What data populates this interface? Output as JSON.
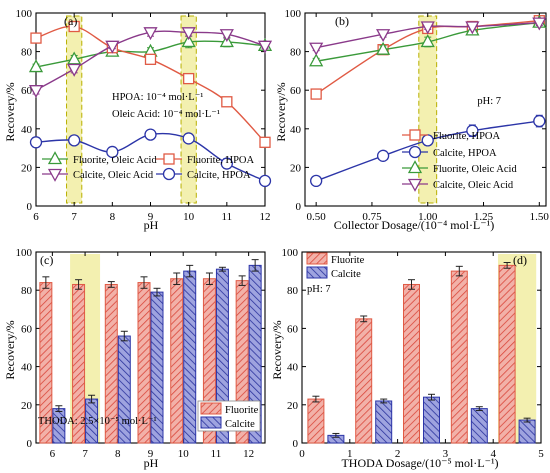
{
  "colors": {
    "fluorite": "#e05a44",
    "calcite": "#2c35a8",
    "fluorite_oleic": "#3a9a3a",
    "calcite_oleic": "#8a3a8a",
    "fluorite_bar": "#f2aaa2",
    "calcite_bar": "#8e93d6",
    "highlight": "#f3f0b0",
    "highlight_edge": "#b8b000"
  },
  "chart_data": [
    {
      "id": "a",
      "type": "line",
      "panel_label": "(a)",
      "xlabel": "pH",
      "ylabel": "Recovery/%",
      "xlim": [
        6,
        12
      ],
      "ylim": [
        0,
        100
      ],
      "xticks": [
        6,
        7,
        8,
        9,
        10,
        11,
        12
      ],
      "yticks": [
        0,
        20,
        40,
        60,
        80,
        100
      ],
      "highlight": [
        [
          6.8,
          7.2
        ],
        [
          9.8,
          10.2
        ]
      ],
      "annotations": [
        "HPOA: 10⁻⁴ mol·L⁻¹",
        "Oleic Acid: 10⁻⁴ mol·L⁻¹"
      ],
      "legend_location": "lower",
      "x": [
        6,
        7,
        8,
        9,
        10,
        11,
        12
      ],
      "series": [
        {
          "name": "Fluorite, Oleic Acid",
          "marker": "triangle-up",
          "color": "#3a9a3a",
          "values": [
            72,
            76,
            80,
            80,
            85,
            85,
            83
          ],
          "errors": [
            1.5,
            2,
            1.5,
            2,
            3,
            2.5,
            1.5
          ]
        },
        {
          "name": "Fluorite, HPOA",
          "marker": "square",
          "color": "#e05a44",
          "values": [
            87,
            93,
            82,
            76,
            66,
            54,
            33
          ],
          "errors": [
            1,
            1.5,
            1.5,
            1.5,
            1.5,
            1.5,
            1.5
          ]
        },
        {
          "name": "Calcite, Oleic Acid",
          "marker": "triangle-down",
          "color": "#8a3a8a",
          "values": [
            60,
            71,
            83,
            90,
            90,
            89,
            83
          ],
          "errors": [
            2,
            2,
            1.5,
            2,
            2,
            2,
            1.5
          ]
        },
        {
          "name": "Calcite, HPOA",
          "marker": "circle",
          "color": "#2c35a8",
          "values": [
            33,
            34,
            28,
            37,
            35,
            22,
            13
          ],
          "errors": [
            2.5,
            2,
            2,
            2,
            2,
            2.5,
            2
          ]
        }
      ]
    },
    {
      "id": "b",
      "type": "line",
      "panel_label": "(b)",
      "xlabel": "Collector Dosage/(10⁻⁴ mol·L⁻¹)",
      "ylabel": "Recovery/%",
      "xlim": [
        0.45,
        1.53
      ],
      "ylim": [
        0,
        100
      ],
      "xticks": [
        0.5,
        0.75,
        1.0,
        1.25,
        1.5
      ],
      "xtick_labels": [
        "0.50",
        "0.75",
        "1.00",
        "1.25",
        "1.50"
      ],
      "yticks": [
        0,
        20,
        40,
        60,
        80,
        100
      ],
      "highlight": [
        [
          0.96,
          1.04
        ]
      ],
      "annotations": [
        "pH: 7"
      ],
      "legend_location": "lower-right",
      "x": [
        0.5,
        0.8,
        1.0,
        1.2,
        1.5
      ],
      "series": [
        {
          "name": "Fluorite, HPOA",
          "marker": "square",
          "color": "#e05a44",
          "values": [
            58,
            81,
            92,
            93,
            96
          ],
          "errors": [
            1.5,
            2,
            2,
            1.5,
            1.5
          ]
        },
        {
          "name": "Calcite, HPOA",
          "marker": "circle",
          "color": "#2c35a8",
          "values": [
            13,
            26,
            34,
            39,
            44
          ],
          "errors": [
            2,
            2,
            2.5,
            3,
            3
          ]
        },
        {
          "name": "Fluorite, Oleic Acid",
          "marker": "triangle-up",
          "color": "#3a9a3a",
          "values": [
            75,
            81,
            85,
            91,
            95
          ],
          "errors": [
            1.5,
            2,
            2.5,
            2,
            1.5
          ]
        },
        {
          "name": "Calcite, Oleic Acid",
          "marker": "triangle-down",
          "color": "#8a3a8a",
          "values": [
            82,
            89,
            93,
            93,
            95
          ],
          "errors": [
            1.5,
            1.5,
            1.5,
            1.5,
            1.5
          ]
        }
      ]
    },
    {
      "id": "c",
      "type": "bar",
      "panel_label": "(c)",
      "xlabel": "pH",
      "ylabel": "Recovery/%",
      "ylim": [
        0,
        100
      ],
      "yticks": [
        0,
        20,
        40,
        60,
        80,
        100
      ],
      "categories": [
        "6",
        "7",
        "8",
        "9",
        "10",
        "11",
        "12"
      ],
      "highlight_categories": [
        "7"
      ],
      "annotations": [
        "THODA: 2.5×10⁻⁵ mol·L⁻¹"
      ],
      "legend_location": "lower-right",
      "series": [
        {
          "name": "Fluorite",
          "color": "#e05a44",
          "values": [
            84,
            83,
            83,
            84,
            86,
            86,
            85
          ],
          "errors": [
            3,
            2.5,
            1.5,
            3,
            3,
            3,
            2.5
          ]
        },
        {
          "name": "Calcite",
          "color": "#2c35a8",
          "values": [
            18,
            23,
            56,
            79,
            90,
            91,
            93
          ],
          "errors": [
            1.5,
            2,
            2.5,
            2,
            3,
            1,
            3
          ]
        }
      ]
    },
    {
      "id": "d",
      "type": "bar",
      "panel_label": "(d)",
      "xlabel": "THODA Dosage/(10⁻⁵ mol·L⁻¹)",
      "ylabel": "Recovery/%",
      "xlim": [
        0,
        5
      ],
      "ylim": [
        0,
        100
      ],
      "xticks": [
        0,
        1,
        2,
        3,
        4,
        5
      ],
      "yticks": [
        0,
        20,
        40,
        60,
        80,
        100
      ],
      "x": [
        0.5,
        1.5,
        2.5,
        3.5,
        4.5
      ],
      "highlight": [
        [
          4.1,
          4.9
        ]
      ],
      "annotations": [
        "pH: 7"
      ],
      "legend_location": "top-left",
      "series": [
        {
          "name": "Fluorite",
          "color": "#e05a44",
          "values": [
            23,
            65,
            83,
            90,
            93
          ],
          "errors": [
            1.5,
            1.5,
            2.5,
            2.5,
            1.5
          ]
        },
        {
          "name": "Calcite",
          "color": "#2c35a8",
          "values": [
            4,
            22,
            24,
            18,
            12
          ],
          "errors": [
            1,
            1,
            1.5,
            1,
            1
          ]
        }
      ]
    }
  ]
}
